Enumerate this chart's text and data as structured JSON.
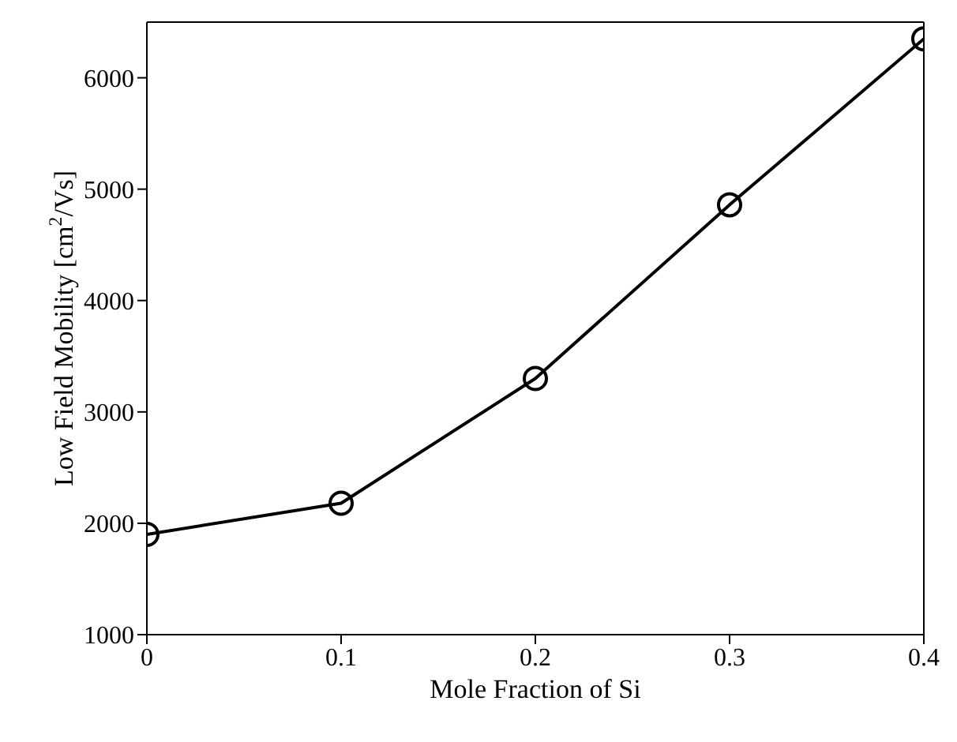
{
  "chart_data": {
    "type": "line",
    "xlabel": "Mole Fraction of Si",
    "ylabel": "Low Field Mobility [cm$^{2}$/Vs]",
    "x": [
      0,
      0.1,
      0.2,
      0.3,
      0.4
    ],
    "series": [
      {
        "color": "#000000",
        "values": [
          1900,
          2180,
          3300,
          4860,
          6350
        ]
      }
    ],
    "xlim": [
      0,
      0.4
    ],
    "xticks": [
      0,
      0.1,
      0.2,
      0.3,
      0.4
    ],
    "ylim": [
      1000,
      6500
    ],
    "yticks": [
      1000,
      2000,
      3000,
      4000,
      5000,
      6000
    ],
    "grid": false,
    "legend": false,
    "marker": "circle",
    "line_style": "solid"
  }
}
